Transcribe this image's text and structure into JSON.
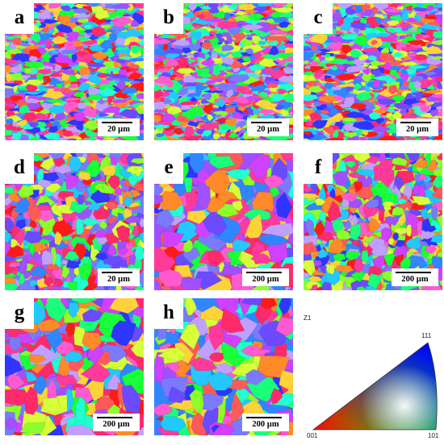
{
  "panels": [
    {
      "label": "a",
      "scale": "20 µm",
      "style": "fine"
    },
    {
      "label": "b",
      "scale": "20 µm",
      "style": "fine"
    },
    {
      "label": "c",
      "scale": "20 µm",
      "style": "fine"
    },
    {
      "label": "d",
      "scale": "20 µm",
      "style": "medium"
    },
    {
      "label": "e",
      "scale": "200 µm",
      "style": "coarse"
    },
    {
      "label": "f",
      "scale": "200 µm",
      "style": "medium"
    },
    {
      "label": "g",
      "scale": "200 µm",
      "style": "coarse"
    },
    {
      "label": "h",
      "scale": "200 µm",
      "style": "coarse"
    }
  ],
  "ipf_key": {
    "axis": "Z1",
    "corner_001": "001",
    "corner_101": "101",
    "corner_111": "111"
  },
  "colors": {
    "red": "#ff1a1a",
    "green": "#19ff3a",
    "blue": "#2222ff"
  }
}
